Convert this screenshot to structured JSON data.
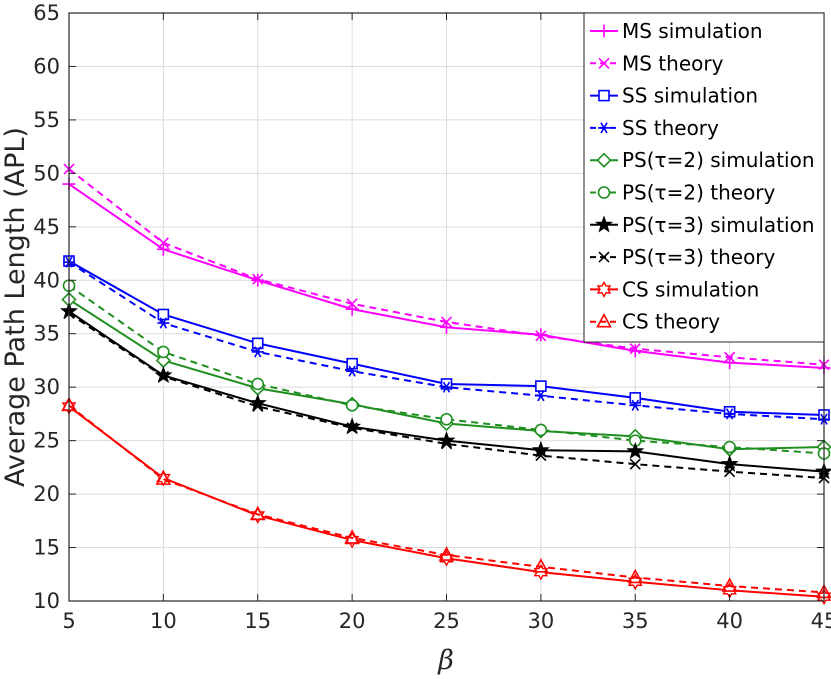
{
  "chart_data": {
    "type": "line",
    "title": "",
    "xlabel": "β",
    "ylabel": "Average Path Length (APL)",
    "x": [
      5,
      10,
      15,
      20,
      25,
      30,
      35,
      40,
      45
    ],
    "xlim": [
      5,
      45
    ],
    "ylim": [
      10,
      65
    ],
    "xticks": [
      5,
      10,
      15,
      20,
      25,
      30,
      35,
      40,
      45
    ],
    "yticks": [
      10,
      15,
      20,
      25,
      30,
      35,
      40,
      45,
      50,
      55,
      60,
      65
    ],
    "grid": true,
    "legend_position": "top-right",
    "series": [
      {
        "name": "MS simulation",
        "color": "#ff00ff",
        "dash": "solid",
        "marker": "plus",
        "values": [
          49.0,
          42.9,
          40.0,
          37.3,
          35.6,
          34.9,
          33.4,
          32.3,
          31.8
        ]
      },
      {
        "name": "MS theory",
        "color": "#ff00ff",
        "dash": "dashed",
        "marker": "x",
        "values": [
          50.4,
          43.5,
          40.1,
          37.8,
          36.1,
          34.8,
          33.6,
          32.8,
          32.1
        ]
      },
      {
        "name": "SS simulation",
        "color": "#0000ff",
        "dash": "solid",
        "marker": "square",
        "values": [
          41.8,
          36.8,
          34.1,
          32.2,
          30.3,
          30.1,
          29.0,
          27.7,
          27.4
        ]
      },
      {
        "name": "SS theory",
        "color": "#0000ff",
        "dash": "dashed",
        "marker": "asterisk",
        "values": [
          41.7,
          36.0,
          33.3,
          31.5,
          30.0,
          29.2,
          28.3,
          27.5,
          27.0
        ]
      },
      {
        "name": "PS(τ=2) simulation",
        "color": "#1f8f1f",
        "dash": "solid",
        "marker": "diamond",
        "values": [
          38.2,
          32.5,
          29.9,
          28.4,
          26.6,
          25.9,
          25.4,
          24.2,
          24.4
        ]
      },
      {
        "name": "PS(τ=2) theory",
        "color": "#1f8f1f",
        "dash": "dashed",
        "marker": "circle",
        "values": [
          39.5,
          33.3,
          30.3,
          28.3,
          27.0,
          26.0,
          25.0,
          24.4,
          23.8
        ]
      },
      {
        "name": "PS(τ=3) simulation",
        "color": "#000000",
        "dash": "solid",
        "marker": "star",
        "values": [
          37.1,
          31.1,
          28.5,
          26.3,
          25.0,
          24.1,
          24.0,
          22.8,
          22.1
        ]
      },
      {
        "name": "PS(τ=3) theory",
        "color": "#000000",
        "dash": "dashed",
        "marker": "x",
        "values": [
          36.9,
          31.0,
          28.2,
          26.2,
          24.7,
          23.6,
          22.8,
          22.1,
          21.5
        ]
      },
      {
        "name": "CS simulation",
        "color": "#ff0000",
        "dash": "solid",
        "marker": "hexagram",
        "values": [
          28.2,
          21.5,
          18.0,
          15.7,
          14.0,
          12.7,
          11.8,
          11.0,
          10.4
        ]
      },
      {
        "name": "CS theory",
        "color": "#ff0000",
        "dash": "dashed",
        "marker": "triangle",
        "values": [
          28.3,
          21.4,
          18.1,
          15.9,
          14.3,
          13.2,
          12.2,
          11.4,
          10.8
        ]
      }
    ]
  }
}
